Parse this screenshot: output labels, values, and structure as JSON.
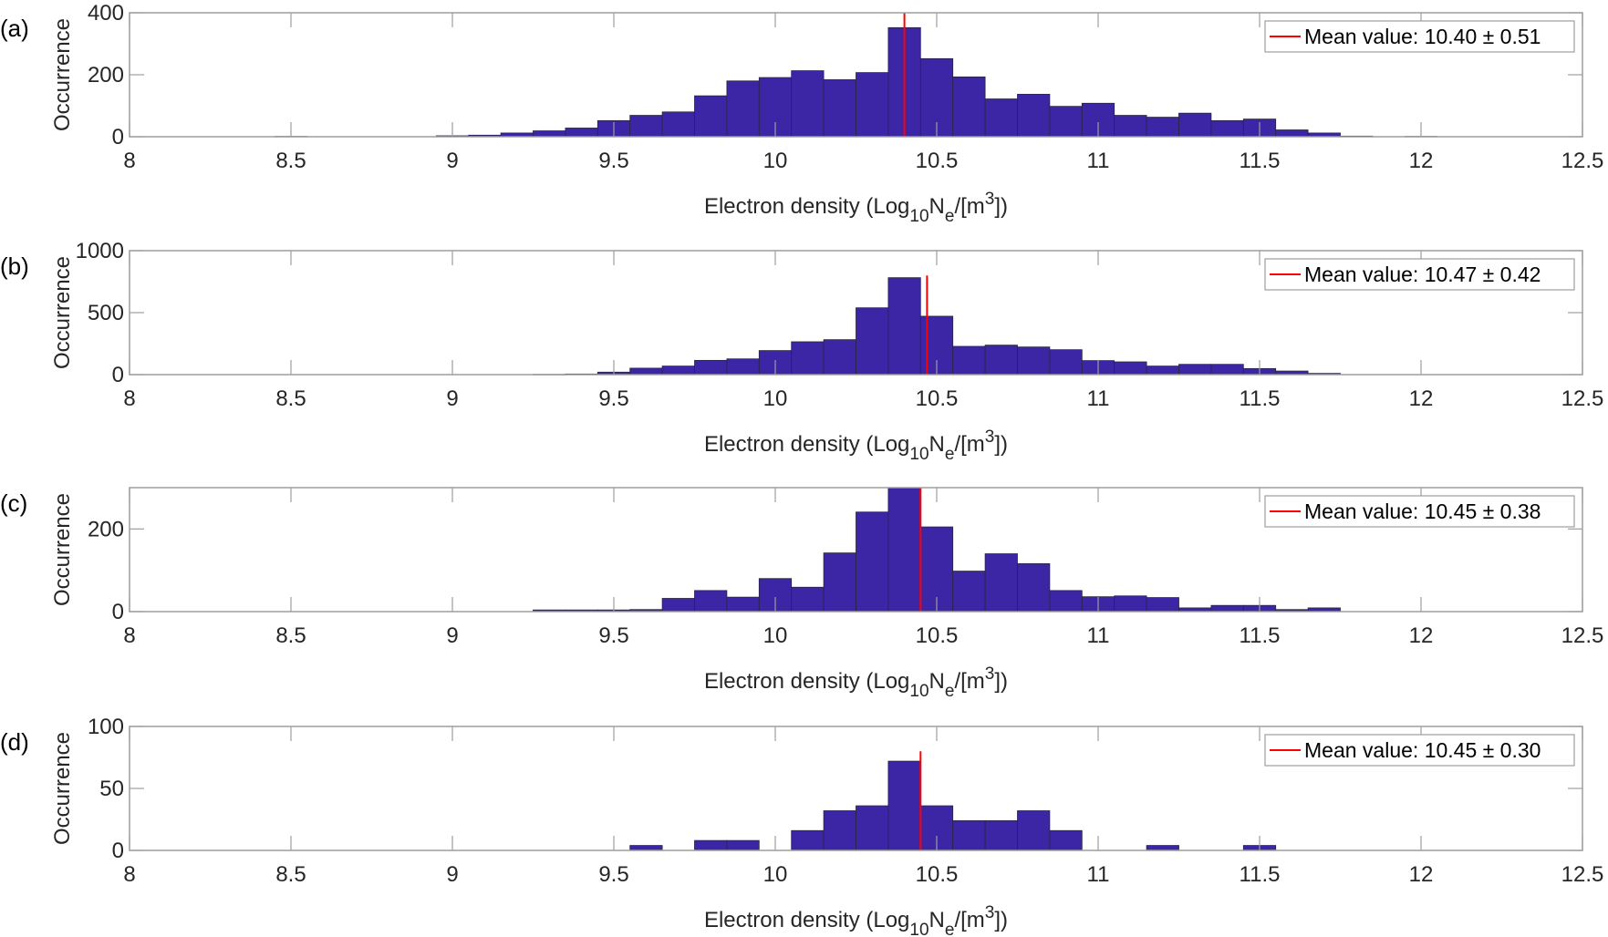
{
  "chart_data": [
    {
      "type": "bar",
      "panel_label": "(a)",
      "xlabel": {
        "prefix": "Electron density (Log",
        "sub1": "10",
        "mid": "N",
        "sub2": "e",
        "mid2": "/[m",
        "sup": "3",
        "suffix": "])"
      },
      "ylabel": "Occurrence",
      "xlim": [
        8,
        12.5
      ],
      "ylim": [
        0,
        400
      ],
      "xticks": [
        "8",
        "8.5",
        "9",
        "9.5",
        "10",
        "10.5",
        "11",
        "11.5",
        "12",
        "12.5"
      ],
      "yticks": [
        "0",
        "200",
        "400"
      ],
      "ytick_values": [
        0,
        200,
        400
      ],
      "bin_width": 0.1,
      "bins": [
        [
          8.5,
          1
        ],
        [
          9.0,
          3
        ],
        [
          9.1,
          5
        ],
        [
          9.2,
          12
        ],
        [
          9.3,
          19
        ],
        [
          9.4,
          28
        ],
        [
          9.5,
          52
        ],
        [
          9.6,
          69
        ],
        [
          9.7,
          80
        ],
        [
          9.8,
          132
        ],
        [
          9.9,
          180
        ],
        [
          10.0,
          191
        ],
        [
          10.1,
          213
        ],
        [
          10.2,
          184
        ],
        [
          10.3,
          207
        ],
        [
          10.4,
          352
        ],
        [
          10.5,
          252
        ],
        [
          10.6,
          193
        ],
        [
          10.7,
          122
        ],
        [
          10.8,
          137
        ],
        [
          10.9,
          98
        ],
        [
          11.0,
          108
        ],
        [
          11.1,
          69
        ],
        [
          11.2,
          63
        ],
        [
          11.3,
          76
        ],
        [
          11.4,
          52
        ],
        [
          11.5,
          57
        ],
        [
          11.6,
          22
        ],
        [
          11.7,
          12
        ],
        [
          11.8,
          2
        ],
        [
          12.0,
          1
        ]
      ],
      "mean": 10.4,
      "mean_line_top": 400,
      "legend": "Mean value: 10.40 ± 0.51",
      "legend_position": "top-right"
    },
    {
      "type": "bar",
      "panel_label": "(b)",
      "xlabel": {
        "prefix": "Electron density (Log",
        "sub1": "10",
        "mid": "N",
        "sub2": "e",
        "mid2": "/[m",
        "sup": "3",
        "suffix": "])"
      },
      "ylabel": "Occurrence",
      "xlim": [
        8,
        12.5
      ],
      "ylim": [
        0,
        1000
      ],
      "xticks": [
        "8",
        "8.5",
        "9",
        "9.5",
        "10",
        "10.5",
        "11",
        "11.5",
        "12",
        "12.5"
      ],
      "yticks": [
        "0",
        "500",
        "1000"
      ],
      "ytick_values": [
        0,
        500,
        1000
      ],
      "bin_width": 0.1,
      "bins": [
        [
          9.3,
          2
        ],
        [
          9.4,
          5
        ],
        [
          9.5,
          20
        ],
        [
          9.6,
          52
        ],
        [
          9.7,
          69
        ],
        [
          9.8,
          115
        ],
        [
          9.9,
          127
        ],
        [
          10.0,
          194
        ],
        [
          10.1,
          265
        ],
        [
          10.2,
          282
        ],
        [
          10.3,
          539
        ],
        [
          10.4,
          782
        ],
        [
          10.5,
          471
        ],
        [
          10.6,
          228
        ],
        [
          10.7,
          238
        ],
        [
          10.8,
          223
        ],
        [
          10.9,
          201
        ],
        [
          11.0,
          113
        ],
        [
          11.1,
          103
        ],
        [
          11.2,
          69
        ],
        [
          11.3,
          83
        ],
        [
          11.4,
          83
        ],
        [
          11.5,
          49
        ],
        [
          11.6,
          29
        ],
        [
          11.7,
          10
        ]
      ],
      "mean": 10.47,
      "mean_line_top": 800,
      "legend": "Mean value: 10.47 ± 0.42",
      "legend_position": "top-right"
    },
    {
      "type": "bar",
      "panel_label": "(c)",
      "xlabel": {
        "prefix": "Electron density (Log",
        "sub1": "10",
        "mid": "N",
        "sub2": "e",
        "mid2": "/[m",
        "sup": "3",
        "suffix": "])"
      },
      "ylabel": "Occurrence",
      "xlim": [
        8,
        12.5
      ],
      "ylim": [
        0,
        300
      ],
      "xticks": [
        "8",
        "8.5",
        "9",
        "9.5",
        "10",
        "10.5",
        "11",
        "11.5",
        "12",
        "12.5"
      ],
      "yticks": [
        "0",
        "200"
      ],
      "ytick_values": [
        0,
        200
      ],
      "bin_width": 0.1,
      "bins": [
        [
          9.3,
          4
        ],
        [
          9.4,
          4
        ],
        [
          9.5,
          4
        ],
        [
          9.6,
          5
        ],
        [
          9.7,
          32
        ],
        [
          9.8,
          51
        ],
        [
          9.9,
          35
        ],
        [
          10.0,
          80
        ],
        [
          10.1,
          59
        ],
        [
          10.2,
          142
        ],
        [
          10.3,
          241
        ],
        [
          10.4,
          300
        ],
        [
          10.5,
          205
        ],
        [
          10.6,
          98
        ],
        [
          10.7,
          140
        ],
        [
          10.8,
          116
        ],
        [
          10.9,
          51
        ],
        [
          11.0,
          36
        ],
        [
          11.1,
          38
        ],
        [
          11.2,
          34
        ],
        [
          11.3,
          9
        ],
        [
          11.4,
          15
        ],
        [
          11.5,
          15
        ],
        [
          11.6,
          5
        ],
        [
          11.7,
          9
        ]
      ],
      "mean": 10.45,
      "mean_line_top": 300,
      "legend": "Mean value: 10.45 ± 0.38",
      "legend_position": "top-right"
    },
    {
      "type": "bar",
      "panel_label": "(d)",
      "xlabel": {
        "prefix": "Electron density (Log",
        "sub1": "10",
        "mid": "N",
        "sub2": "e",
        "mid2": "/[m",
        "sup": "3",
        "suffix": "])"
      },
      "ylabel": "Occurrence",
      "xlim": [
        8,
        12.5
      ],
      "ylim": [
        0,
        100
      ],
      "xticks": [
        "8",
        "8.5",
        "9",
        "9.5",
        "10",
        "10.5",
        "11",
        "11.5",
        "12",
        "12.5"
      ],
      "yticks": [
        "0",
        "50",
        "100"
      ],
      "ytick_values": [
        0,
        50,
        100
      ],
      "bin_width": 0.1,
      "bins": [
        [
          9.6,
          4
        ],
        [
          9.8,
          8
        ],
        [
          9.9,
          8
        ],
        [
          10.1,
          16
        ],
        [
          10.2,
          32
        ],
        [
          10.3,
          36
        ],
        [
          10.4,
          72
        ],
        [
          10.5,
          36
        ],
        [
          10.6,
          24
        ],
        [
          10.7,
          24
        ],
        [
          10.8,
          32
        ],
        [
          10.9,
          16
        ],
        [
          11.2,
          4
        ],
        [
          11.5,
          4
        ]
      ],
      "mean": 10.45,
      "mean_line_top": 80,
      "legend": "Mean value: 10.45 ± 0.30",
      "legend_position": "top-right"
    }
  ],
  "colors": {
    "bar": "#3c26a6",
    "bar_edge": "#2b2440",
    "mean_line": "#ff0000",
    "axis": "#9e9e9e",
    "text": "#262626"
  }
}
